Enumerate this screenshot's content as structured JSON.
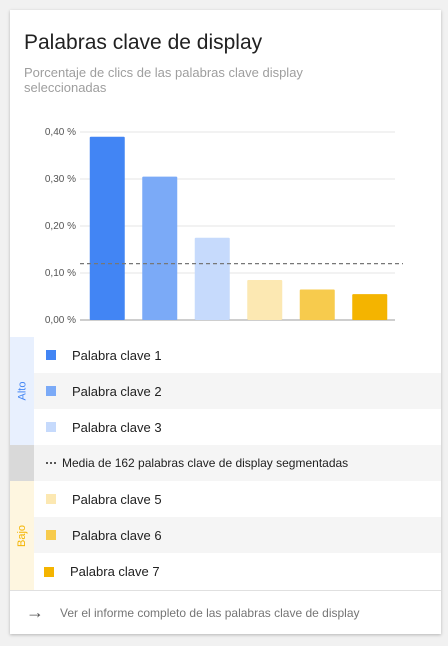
{
  "card": {
    "title": "Palabras clave de display",
    "subtitle": "Porcentaje de clics de las palabras clave display seleccionadas"
  },
  "chart_data": {
    "type": "bar",
    "categories": [
      "Palabra clave 1",
      "Palabra clave 2",
      "Palabra clave 3",
      "Palabra clave 5",
      "Palabra clave 6",
      "Palabra clave 7"
    ],
    "values": [
      0.39,
      0.305,
      0.175,
      0.085,
      0.065,
      0.055
    ],
    "colors": [
      "#4285f4",
      "#7baaf7",
      "#c6dafc",
      "#fce8b2",
      "#f7cb4d",
      "#f4b400"
    ],
    "yticks": [
      "0,00 %",
      "0,10 %",
      "0,20 %",
      "0,30 %",
      "0,40 %"
    ],
    "ylim": [
      0,
      0.4
    ],
    "reference_line": 0.12,
    "grid": true
  },
  "legend": {
    "high_label": "Alto",
    "low_label": "Bajo",
    "items_high": [
      {
        "label": "Palabra clave 1",
        "color": "#4285f4"
      },
      {
        "label": "Palabra clave 2",
        "color": "#7baaf7"
      },
      {
        "label": "Palabra clave 3",
        "color": "#c6dafc"
      }
    ],
    "average_label": "Media de 162 palabras clave de display segmentadas",
    "items_low": [
      {
        "label": "Palabra clave 5",
        "color": "#fce8b2"
      },
      {
        "label": "Palabra clave 6",
        "color": "#f7cb4d"
      },
      {
        "label": "Palabra clave 7",
        "color": "#f4b400"
      }
    ],
    "band_colors": {
      "high": "#e8f0fe",
      "mid": "#d9d9d9",
      "low": "#fef6e0",
      "high_text": "#4285f4",
      "low_text": "#f4b400"
    }
  },
  "footer": {
    "link": "Ver el informe completo de las palabras clave de display",
    "icon": "arrow-right-icon"
  }
}
